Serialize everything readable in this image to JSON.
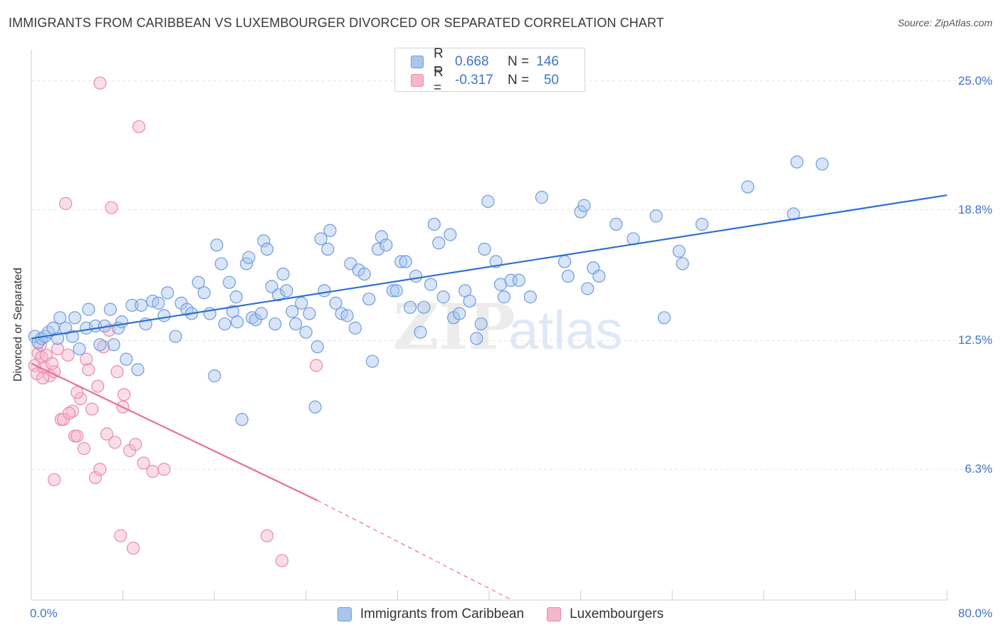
{
  "header": {
    "title": "IMMIGRANTS FROM CARIBBEAN VS LUXEMBOURGER DIVORCED OR SEPARATED CORRELATION CHART",
    "source": "Source: ZipAtlas.com"
  },
  "watermark": {
    "zip": "ZIP",
    "atlas": "atlas"
  },
  "legend": {
    "rows": [
      {
        "r_label": "R =",
        "r_value": "0.668",
        "n_label": "N =",
        "n_value": "146"
      },
      {
        "r_label": "R =",
        "r_value": "-0.317",
        "n_label": "N =",
        "n_value": "50"
      }
    ]
  },
  "colors": {
    "blue_fill": "#a9c6ec",
    "blue_stroke": "#6f9be0",
    "blue_line": "#2c6fd1",
    "pink_fill": "#f5b6c9",
    "pink_stroke": "#ec8aa8",
    "pink_line": "#e8709a",
    "axis_text": "#3f74c9",
    "grid": "#e3e3e3"
  },
  "chart_data": {
    "type": "scatter",
    "title": "IMMIGRANTS FROM CARIBBEAN VS LUXEMBOURGER DIVORCED OR SEPARATED CORRELATION CHART",
    "xlabel": "",
    "ylabel": "Divorced or Separated",
    "xlim": [
      0,
      80
    ],
    "ylim": [
      0,
      26.5
    ],
    "x_tick_labels": {
      "min": "0.0%",
      "max": "80.0%"
    },
    "y_ticks": [
      {
        "value": 6.3,
        "label": "6.3%"
      },
      {
        "value": 12.5,
        "label": "12.5%"
      },
      {
        "value": 18.8,
        "label": "18.8%"
      },
      {
        "value": 25.0,
        "label": "25.0%"
      }
    ],
    "series": [
      {
        "name": "Immigrants from Caribbean",
        "color": "blue",
        "trend": {
          "x0": 0.0,
          "y0": 12.6,
          "x1": 80.0,
          "y1": 19.5,
          "dashed_after": null
        },
        "points": [
          [
            0.3,
            12.7
          ],
          [
            0.6,
            12.4
          ],
          [
            0.9,
            12.6
          ],
          [
            1.2,
            12.7
          ],
          [
            1.5,
            12.9
          ],
          [
            1.9,
            13.1
          ],
          [
            2.3,
            12.6
          ],
          [
            2.5,
            13.6
          ],
          [
            3.0,
            13.1
          ],
          [
            3.6,
            12.7
          ],
          [
            3.8,
            13.6
          ],
          [
            4.2,
            12.1
          ],
          [
            4.8,
            13.1
          ],
          [
            5.0,
            14.0
          ],
          [
            5.6,
            13.2
          ],
          [
            6.0,
            12.3
          ],
          [
            6.4,
            13.2
          ],
          [
            6.9,
            14.0
          ],
          [
            7.2,
            12.3
          ],
          [
            7.6,
            13.1
          ],
          [
            7.9,
            13.4
          ],
          [
            8.3,
            11.6
          ],
          [
            8.8,
            14.2
          ],
          [
            9.3,
            11.1
          ],
          [
            9.6,
            14.2
          ],
          [
            10.0,
            13.3
          ],
          [
            10.6,
            14.4
          ],
          [
            11.1,
            14.3
          ],
          [
            11.6,
            13.7
          ],
          [
            11.9,
            14.8
          ],
          [
            12.6,
            12.7
          ],
          [
            13.1,
            14.3
          ],
          [
            13.6,
            14.0
          ],
          [
            14.0,
            13.8
          ],
          [
            14.6,
            15.3
          ],
          [
            15.1,
            14.8
          ],
          [
            15.6,
            13.8
          ],
          [
            16.0,
            10.8
          ],
          [
            16.2,
            17.1
          ],
          [
            16.6,
            16.2
          ],
          [
            16.9,
            13.3
          ],
          [
            17.3,
            15.3
          ],
          [
            17.6,
            13.9
          ],
          [
            17.9,
            14.6
          ],
          [
            18.0,
            13.4
          ],
          [
            18.4,
            8.7
          ],
          [
            18.8,
            16.2
          ],
          [
            19.0,
            16.5
          ],
          [
            19.3,
            13.6
          ],
          [
            19.6,
            13.5
          ],
          [
            20.1,
            13.8
          ],
          [
            20.3,
            17.3
          ],
          [
            20.6,
            16.9
          ],
          [
            21.0,
            15.1
          ],
          [
            21.3,
            13.3
          ],
          [
            21.6,
            14.7
          ],
          [
            22.0,
            15.7
          ],
          [
            22.3,
            14.9
          ],
          [
            22.8,
            13.9
          ],
          [
            23.1,
            13.3
          ],
          [
            23.6,
            14.3
          ],
          [
            24.0,
            12.9
          ],
          [
            24.3,
            13.8
          ],
          [
            24.8,
            9.3
          ],
          [
            25.0,
            12.2
          ],
          [
            25.3,
            17.4
          ],
          [
            25.6,
            14.9
          ],
          [
            25.9,
            16.9
          ],
          [
            26.1,
            17.8
          ],
          [
            26.6,
            14.3
          ],
          [
            27.1,
            13.8
          ],
          [
            27.6,
            13.7
          ],
          [
            27.9,
            16.2
          ],
          [
            28.3,
            13.1
          ],
          [
            28.6,
            15.9
          ],
          [
            29.1,
            15.7
          ],
          [
            29.5,
            14.5
          ],
          [
            29.8,
            11.5
          ],
          [
            30.3,
            16.9
          ],
          [
            30.6,
            17.5
          ],
          [
            31.0,
            17.1
          ],
          [
            31.6,
            14.9
          ],
          [
            31.9,
            14.9
          ],
          [
            32.3,
            16.3
          ],
          [
            32.7,
            16.3
          ],
          [
            33.1,
            14.1
          ],
          [
            33.6,
            15.6
          ],
          [
            34.0,
            12.9
          ],
          [
            34.3,
            14.1
          ],
          [
            34.9,
            15.2
          ],
          [
            35.2,
            18.1
          ],
          [
            35.6,
            17.2
          ],
          [
            36.0,
            14.6
          ],
          [
            36.6,
            17.6
          ],
          [
            36.9,
            13.6
          ],
          [
            37.4,
            13.8
          ],
          [
            37.9,
            14.9
          ],
          [
            38.3,
            14.4
          ],
          [
            38.9,
            12.6
          ],
          [
            39.3,
            13.3
          ],
          [
            39.6,
            16.9
          ],
          [
            39.9,
            19.2
          ],
          [
            40.6,
            16.3
          ],
          [
            41.0,
            15.2
          ],
          [
            41.3,
            14.6
          ],
          [
            41.9,
            15.4
          ],
          [
            42.6,
            15.4
          ],
          [
            43.6,
            14.6
          ],
          [
            44.6,
            19.4
          ],
          [
            46.6,
            16.3
          ],
          [
            46.9,
            15.6
          ],
          [
            48.0,
            18.7
          ],
          [
            48.3,
            19.0
          ],
          [
            48.6,
            15.0
          ],
          [
            49.1,
            16.0
          ],
          [
            49.6,
            15.6
          ],
          [
            51.1,
            18.1
          ],
          [
            52.6,
            17.4
          ],
          [
            54.6,
            18.5
          ],
          [
            55.3,
            13.6
          ],
          [
            56.6,
            16.8
          ],
          [
            56.9,
            16.2
          ],
          [
            58.6,
            18.1
          ],
          [
            62.6,
            19.9
          ],
          [
            66.6,
            18.6
          ],
          [
            66.9,
            21.1
          ],
          [
            69.1,
            21.0
          ]
        ]
      },
      {
        "name": "Luxembourgers",
        "color": "pink",
        "trend": {
          "x0": 0.0,
          "y0": 11.4,
          "x1": 25.0,
          "y1": 4.8,
          "dashed_after": 25.0,
          "dash_end_x": 42.0,
          "dash_end_y": 0.0
        },
        "points": [
          [
            0.3,
            11.3
          ],
          [
            0.5,
            10.9
          ],
          [
            0.6,
            11.9
          ],
          [
            0.9,
            11.7
          ],
          [
            1.1,
            11.2
          ],
          [
            1.3,
            11.8
          ],
          [
            1.6,
            10.8
          ],
          [
            2.0,
            11.0
          ],
          [
            2.3,
            12.1
          ],
          [
            2.6,
            8.7
          ],
          [
            2.8,
            8.7
          ],
          [
            3.0,
            19.1
          ],
          [
            3.2,
            11.8
          ],
          [
            3.6,
            9.1
          ],
          [
            3.8,
            7.9
          ],
          [
            4.0,
            7.9
          ],
          [
            4.3,
            9.7
          ],
          [
            4.6,
            7.3
          ],
          [
            4.8,
            11.6
          ],
          [
            5.0,
            11.1
          ],
          [
            5.3,
            9.2
          ],
          [
            5.6,
            5.9
          ],
          [
            5.8,
            10.3
          ],
          [
            6.0,
            6.3
          ],
          [
            6.3,
            12.2
          ],
          [
            6.6,
            8.0
          ],
          [
            6.8,
            13.0
          ],
          [
            7.0,
            18.9
          ],
          [
            7.3,
            7.6
          ],
          [
            7.8,
            3.1
          ],
          [
            8.0,
            9.3
          ],
          [
            8.1,
            9.9
          ],
          [
            8.6,
            7.2
          ],
          [
            8.9,
            2.5
          ],
          [
            9.1,
            7.5
          ],
          [
            9.4,
            22.8
          ],
          [
            9.8,
            6.6
          ],
          [
            10.6,
            6.2
          ],
          [
            11.6,
            6.3
          ],
          [
            20.6,
            3.1
          ],
          [
            21.9,
            1.9
          ],
          [
            24.9,
            11.3
          ],
          [
            2.0,
            5.8
          ],
          [
            1.0,
            10.7
          ],
          [
            0.8,
            12.3
          ],
          [
            1.8,
            11.4
          ],
          [
            6.0,
            24.9
          ],
          [
            4.0,
            10.0
          ],
          [
            7.5,
            11.0
          ],
          [
            3.3,
            9.0
          ]
        ]
      }
    ]
  },
  "bottom_legend": [
    {
      "label": "Immigrants from Caribbean"
    },
    {
      "label": "Luxembourgers"
    }
  ]
}
